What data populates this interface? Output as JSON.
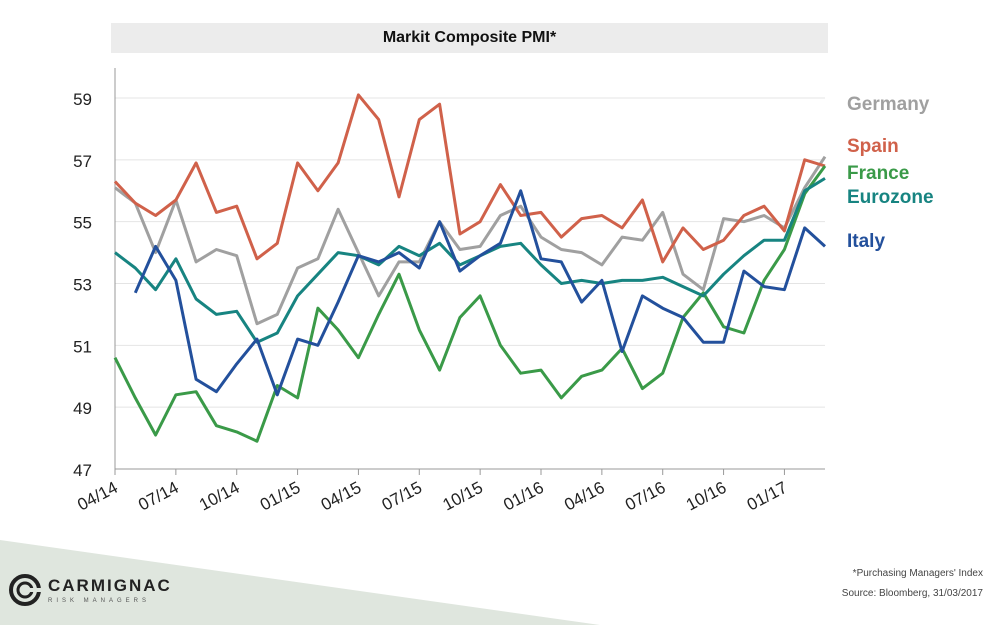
{
  "chart_data": {
    "type": "line",
    "title": "Markit Composite PMI*",
    "xlabel": "",
    "ylabel": "",
    "ylim": [
      47,
      60
    ],
    "yticks": [
      47,
      49,
      51,
      53,
      55,
      57,
      59
    ],
    "grid": true,
    "legend_position": "right",
    "x_tick_labels": [
      "04/14",
      "07/14",
      "10/14",
      "01/15",
      "04/15",
      "07/15",
      "10/15",
      "01/16",
      "04/16",
      "07/16",
      "10/16",
      "01/17"
    ],
    "x": [
      "04/14",
      "05/14",
      "06/14",
      "07/14",
      "08/14",
      "09/14",
      "10/14",
      "11/14",
      "12/14",
      "01/15",
      "02/15",
      "03/15",
      "04/15",
      "05/15",
      "06/15",
      "07/15",
      "08/15",
      "09/15",
      "10/15",
      "11/15",
      "12/15",
      "01/16",
      "02/16",
      "03/16",
      "04/16",
      "05/16",
      "06/16",
      "07/16",
      "08/16",
      "09/16",
      "10/16",
      "11/16",
      "12/16",
      "01/17",
      "02/17",
      "03/17"
    ],
    "series": [
      {
        "name": "Germany",
        "color": "#a0a0a0",
        "values": [
          56.1,
          55.6,
          54.0,
          55.7,
          53.7,
          54.1,
          53.9,
          51.7,
          52.0,
          53.5,
          53.8,
          55.4,
          54.0,
          52.6,
          53.7,
          53.7,
          55.0,
          54.1,
          54.2,
          55.2,
          55.5,
          54.5,
          54.1,
          54.0,
          53.6,
          54.5,
          54.4,
          55.3,
          53.3,
          52.8,
          55.1,
          55.0,
          55.2,
          54.8,
          56.1,
          57.1
        ]
      },
      {
        "name": "Spain",
        "color": "#d0614a",
        "values": [
          56.3,
          55.6,
          55.2,
          55.7,
          56.9,
          55.3,
          55.5,
          53.8,
          54.3,
          56.9,
          56.0,
          56.9,
          59.1,
          58.3,
          55.8,
          58.3,
          58.8,
          54.6,
          55.0,
          56.2,
          55.2,
          55.3,
          54.5,
          55.1,
          55.2,
          54.8,
          55.7,
          53.7,
          54.8,
          54.1,
          54.4,
          55.2,
          55.5,
          54.7,
          57.0,
          56.8
        ]
      },
      {
        "name": "France",
        "color": "#3a9a48",
        "values": [
          50.6,
          49.3,
          48.1,
          49.4,
          49.5,
          48.4,
          48.2,
          47.9,
          49.7,
          49.3,
          52.2,
          51.5,
          50.6,
          52.0,
          53.3,
          51.5,
          50.2,
          51.9,
          52.6,
          51.0,
          50.1,
          50.2,
          49.3,
          50.0,
          50.2,
          50.9,
          49.6,
          50.1,
          51.9,
          52.7,
          51.6,
          51.4,
          53.1,
          54.1,
          55.9,
          56.8
        ]
      },
      {
        "name": "Eurozone",
        "color": "#178481",
        "values": [
          54.0,
          53.5,
          52.8,
          53.8,
          52.5,
          52.0,
          52.1,
          51.1,
          51.4,
          52.6,
          53.3,
          54.0,
          53.9,
          53.6,
          54.2,
          53.9,
          54.3,
          53.6,
          53.9,
          54.2,
          54.3,
          53.6,
          53.0,
          53.1,
          53.0,
          53.1,
          53.1,
          53.2,
          52.9,
          52.6,
          53.3,
          53.9,
          54.4,
          54.4,
          56.0,
          56.4
        ]
      },
      {
        "name": "Italy",
        "color": "#23509c",
        "values": [
          null,
          52.7,
          54.2,
          53.1,
          49.9,
          49.5,
          50.4,
          51.2,
          49.4,
          51.2,
          51.0,
          52.4,
          53.9,
          53.7,
          54.0,
          53.5,
          55.0,
          53.4,
          53.9,
          54.3,
          56.0,
          53.8,
          53.7,
          52.4,
          53.1,
          50.8,
          52.6,
          52.2,
          51.9,
          51.1,
          51.1,
          53.4,
          52.9,
          52.8,
          54.8,
          54.2
        ]
      }
    ]
  },
  "legend": [
    {
      "label": "Germany",
      "color": "#a0a0a0"
    },
    {
      "label": "Spain",
      "color": "#d0614a"
    },
    {
      "label": "France",
      "color": "#3a9a48"
    },
    {
      "label": "Eurozone",
      "color": "#178481"
    },
    {
      "label": "Italy",
      "color": "#23509c"
    }
  ],
  "footer": {
    "note": "*Purchasing Managers' Index",
    "source": "Source: Bloomberg, 31/03/2017"
  },
  "logo": {
    "name": "CARMIGNAC",
    "tagline": "RISK MANAGERS"
  }
}
